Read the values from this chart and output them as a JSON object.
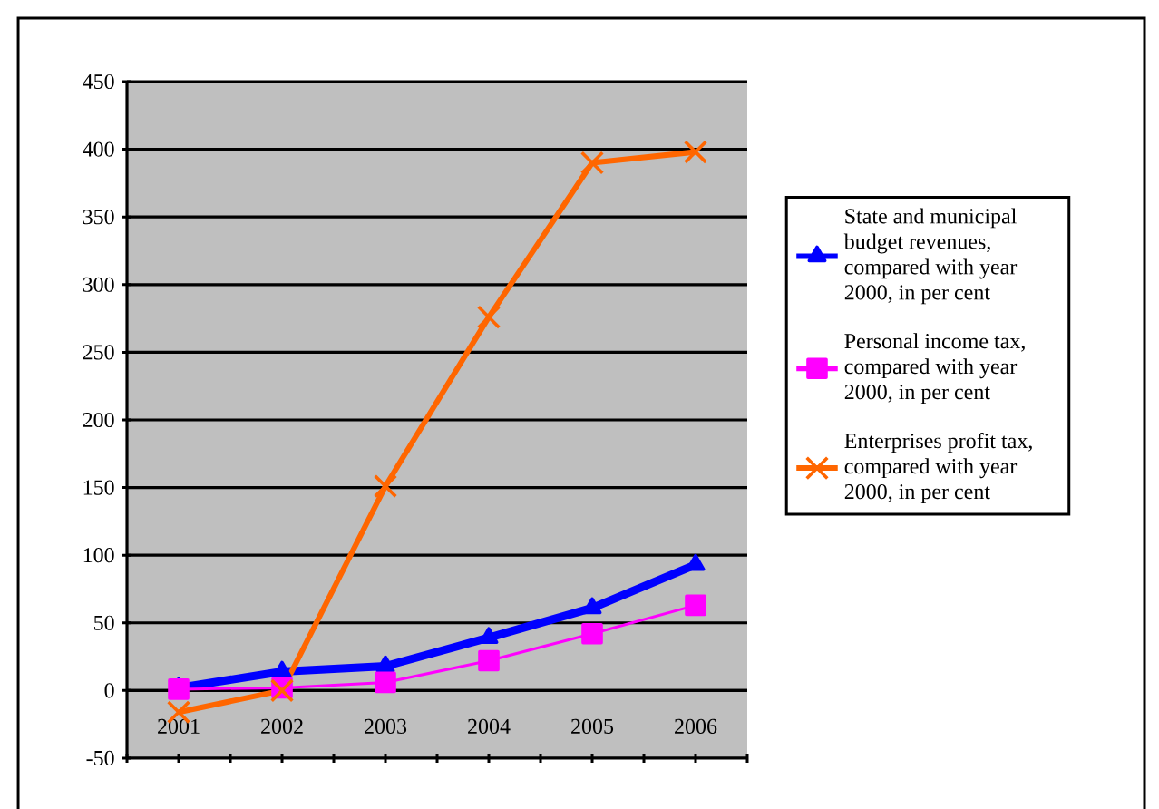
{
  "chart_data": {
    "type": "line",
    "categories": [
      "2001",
      "2002",
      "2003",
      "2004",
      "2005",
      "2006"
    ],
    "series": [
      {
        "name": "State and municipal budget revenues, compared with year 2000, in per cent",
        "color": "#0000ff",
        "marker": "triangle",
        "values": [
          2,
          14,
          18,
          39,
          61,
          93
        ]
      },
      {
        "name": "Personal income tax, compared with year 2000, in per cent",
        "color": "#ff00ff",
        "marker": "square",
        "values": [
          1,
          2,
          6,
          22,
          42,
          63
        ]
      },
      {
        "name": "Enterprises profit tax, compared with year 2000, in per cent",
        "color": "#ff6600",
        "marker": "cross",
        "values": [
          -16,
          0,
          151,
          276,
          390,
          398
        ]
      }
    ],
    "ylim": [
      -50,
      450
    ],
    "yticks": [
      -50,
      0,
      50,
      100,
      150,
      200,
      250,
      300,
      350,
      400,
      450
    ],
    "grid": "y",
    "legend": "right",
    "line_style": "solid"
  }
}
